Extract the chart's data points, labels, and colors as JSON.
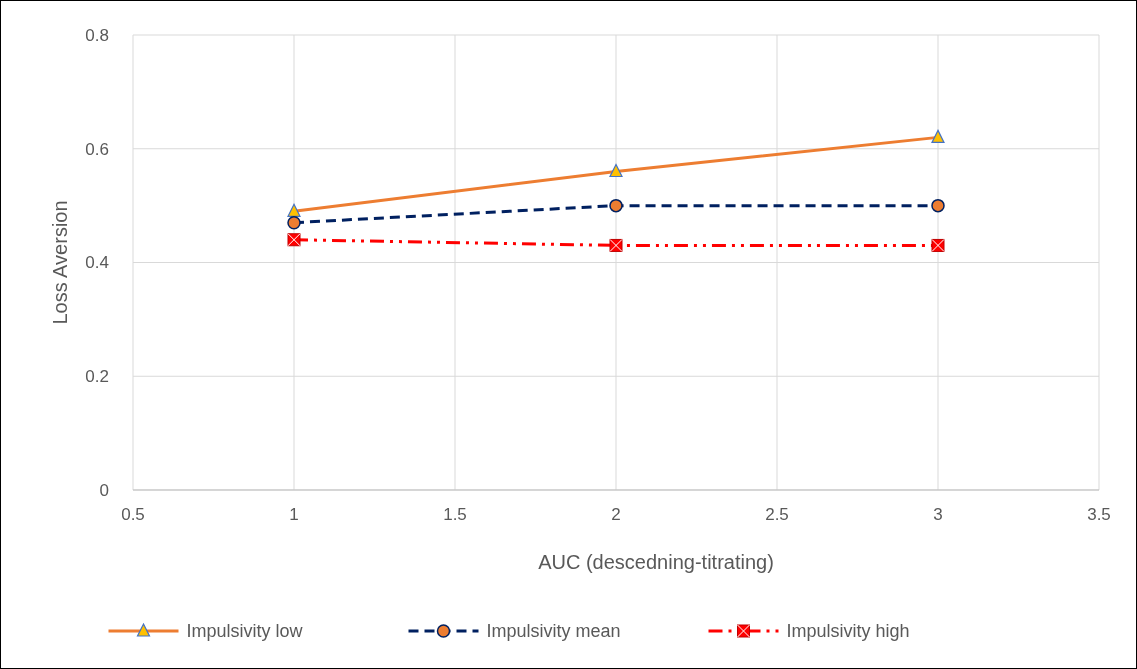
{
  "chart_data": {
    "type": "line",
    "xlabel": "AUC (descedning-titrating)",
    "ylabel": "Loss Aversion",
    "x": [
      1,
      2,
      3
    ],
    "series": [
      {
        "name": "Impulsivity low",
        "color": "#ed7d31",
        "values": [
          0.49,
          0.56,
          0.62
        ],
        "marker": "triangle",
        "line_style": "solid"
      },
      {
        "name": "Impulsivity mean",
        "color": "#002060",
        "values": [
          0.47,
          0.5,
          0.5
        ],
        "marker": "circle",
        "line_style": "dashed"
      },
      {
        "name": "Impulsivity high",
        "color": "#ff0000",
        "values": [
          0.44,
          0.43,
          0.43
        ],
        "marker": "square",
        "line_style": "dotted"
      }
    ],
    "xlim": [
      0.5,
      3.5
    ],
    "xticks": [
      0.5,
      1,
      1.5,
      2,
      2.5,
      3,
      3.5
    ],
    "ylim": [
      0,
      0.8
    ],
    "yticks": [
      0,
      0.2,
      0.4,
      0.6,
      0.8
    ],
    "grid": true,
    "legend": "bottom"
  }
}
